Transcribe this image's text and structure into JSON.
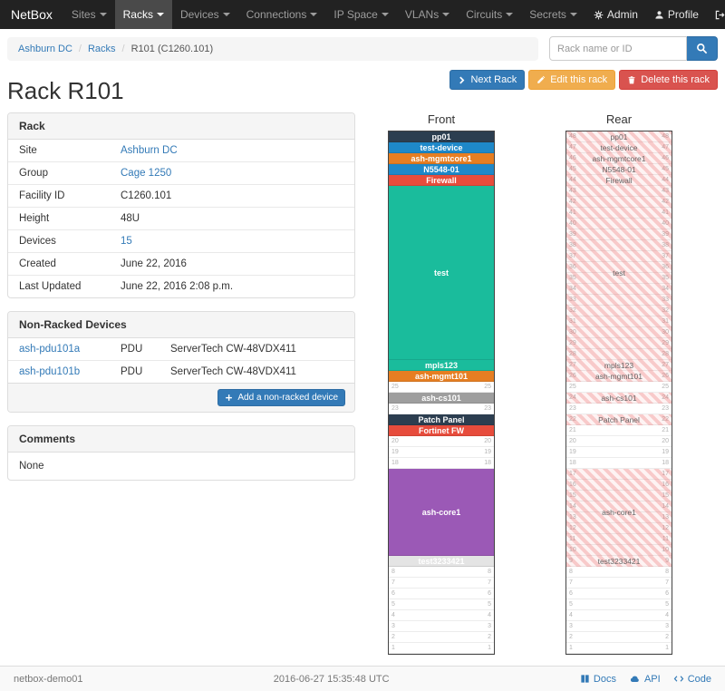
{
  "colors": {
    "link": "#337ab7",
    "primary": "#337ab7",
    "warning": "#f0ad4e",
    "danger": "#d9534f",
    "navbar": "#222222"
  },
  "navbar": {
    "brand": "NetBox",
    "items": [
      {
        "label": "Sites",
        "active": false
      },
      {
        "label": "Racks",
        "active": true
      },
      {
        "label": "Devices",
        "active": false
      },
      {
        "label": "Connections",
        "active": false
      },
      {
        "label": "IP Space",
        "active": false
      },
      {
        "label": "VLANs",
        "active": false
      },
      {
        "label": "Circuits",
        "active": false
      },
      {
        "label": "Secrets",
        "active": false
      }
    ],
    "right_items": [
      {
        "label": "Admin",
        "icon": "gear-icon"
      },
      {
        "label": "Profile",
        "icon": "user-icon"
      },
      {
        "label": "Log out",
        "icon": "logout-icon"
      }
    ]
  },
  "breadcrumb": {
    "items": [
      {
        "label": "Ashburn DC",
        "link": true
      },
      {
        "label": "Racks",
        "link": true
      },
      {
        "label": "R101 (C1260.101)",
        "link": false
      }
    ]
  },
  "search": {
    "placeholder": "Rack name or ID",
    "icon": "search-icon"
  },
  "actions": [
    {
      "label": "Next Rack",
      "style": "primary",
      "icon": "chevron-right-icon"
    },
    {
      "label": "Edit this rack",
      "style": "warning",
      "icon": "pencil-icon"
    },
    {
      "label": "Delete this rack",
      "style": "danger",
      "icon": "trash-icon"
    }
  ],
  "page_title": "Rack R101",
  "rack_panel": {
    "title": "Rack",
    "rows": [
      {
        "label": "Site",
        "value": "Ashburn DC",
        "link": true
      },
      {
        "label": "Group",
        "value": "Cage 1250",
        "link": true
      },
      {
        "label": "Facility ID",
        "value": "C1260.101",
        "link": false
      },
      {
        "label": "Height",
        "value": "48U",
        "link": false
      },
      {
        "label": "Devices",
        "value": "15",
        "link": true
      },
      {
        "label": "Created",
        "value": "June 22, 2016",
        "link": false
      },
      {
        "label": "Last Updated",
        "value": "June 22, 2016 2:08 p.m.",
        "link": false
      }
    ]
  },
  "non_racked": {
    "title": "Non-Racked Devices",
    "rows": [
      {
        "name": "ash-pdu101a",
        "role": "PDU",
        "type": "ServerTech CW-48VDX411"
      },
      {
        "name": "ash-pdu101b",
        "role": "PDU",
        "type": "ServerTech CW-48VDX411"
      }
    ],
    "add_button": {
      "label": "Add a non-racked device",
      "icon": "plus-icon"
    }
  },
  "comments": {
    "title": "Comments",
    "body": "None"
  },
  "elevations": {
    "front": {
      "title": "Front",
      "units": 48,
      "devices": [
        {
          "name": "pp01",
          "top_u": 48,
          "height_u": 1,
          "color": "#2c3e50",
          "text": "#ffffff"
        },
        {
          "name": "test-device",
          "top_u": 47,
          "height_u": 1,
          "color": "#1e88c9",
          "text": "#ffffff"
        },
        {
          "name": "ash-mgmtcore1",
          "top_u": 46,
          "height_u": 1,
          "color": "#e67e22",
          "text": "#ffffff"
        },
        {
          "name": "N5548-01",
          "top_u": 45,
          "height_u": 1,
          "color": "#1e88c9",
          "text": "#ffffff"
        },
        {
          "name": "Firewall",
          "top_u": 44,
          "height_u": 1,
          "color": "#e74c3c",
          "text": "#ffffff"
        },
        {
          "name": "test",
          "top_u": 43,
          "height_u": 16,
          "color": "#1abc9c",
          "text": "#ffffff"
        },
        {
          "name": "mpls123",
          "top_u": 27,
          "height_u": 1,
          "color": "#1abc9c",
          "text": "#ffffff"
        },
        {
          "name": "ash-mgmt101",
          "top_u": 26,
          "height_u": 1,
          "color": "#e67e22",
          "text": "#ffffff"
        },
        {
          "name": "ash-cs101",
          "top_u": 24,
          "height_u": 1,
          "color": "#9e9e9e",
          "text": "#ffffff"
        },
        {
          "name": "Patch Panel",
          "top_u": 22,
          "height_u": 1,
          "color": "#2c3e50",
          "text": "#ffffff"
        },
        {
          "name": "Fortinet FW",
          "top_u": 21,
          "height_u": 1,
          "color": "#e74c3c",
          "text": "#ffffff"
        },
        {
          "name": "ash-core1",
          "top_u": 17,
          "height_u": 8,
          "color": "#9b59b6",
          "text": "#ffffff"
        },
        {
          "name": "test3233421",
          "top_u": 9,
          "height_u": 1,
          "color": "#e4e4e4",
          "text": "#ffffff"
        }
      ]
    },
    "rear": {
      "title": "Rear",
      "units": 48,
      "devices": [
        {
          "name": "pp01",
          "top_u": 48,
          "height_u": 1,
          "striped": true
        },
        {
          "name": "test-device",
          "top_u": 47,
          "height_u": 1,
          "striped": true
        },
        {
          "name": "ash-mgmtcore1",
          "top_u": 46,
          "height_u": 1,
          "striped": true
        },
        {
          "name": "N5548-01",
          "top_u": 45,
          "height_u": 1,
          "striped": true
        },
        {
          "name": "Firewall",
          "top_u": 44,
          "height_u": 1,
          "striped": true
        },
        {
          "name": "test",
          "top_u": 43,
          "height_u": 16,
          "striped": true
        },
        {
          "name": "mpls123",
          "top_u": 27,
          "height_u": 1,
          "striped": true
        },
        {
          "name": "ash-mgmt101",
          "top_u": 26,
          "height_u": 1,
          "striped": true
        },
        {
          "name": "ash-cs101",
          "top_u": 24,
          "height_u": 1,
          "striped": true
        },
        {
          "name": "Patch Panel",
          "top_u": 22,
          "height_u": 1,
          "striped": true
        },
        {
          "name": "ash-core1",
          "top_u": 17,
          "height_u": 8,
          "striped": true
        },
        {
          "name": "test3233421",
          "top_u": 9,
          "height_u": 1,
          "striped": true
        }
      ]
    }
  },
  "footer": {
    "hostname": "netbox-demo01",
    "timestamp": "2016-06-27 15:35:48 UTC",
    "links": [
      {
        "label": "Docs",
        "icon": "book-icon"
      },
      {
        "label": "API",
        "icon": "cloud-icon"
      },
      {
        "label": "Code",
        "icon": "code-icon"
      }
    ]
  }
}
